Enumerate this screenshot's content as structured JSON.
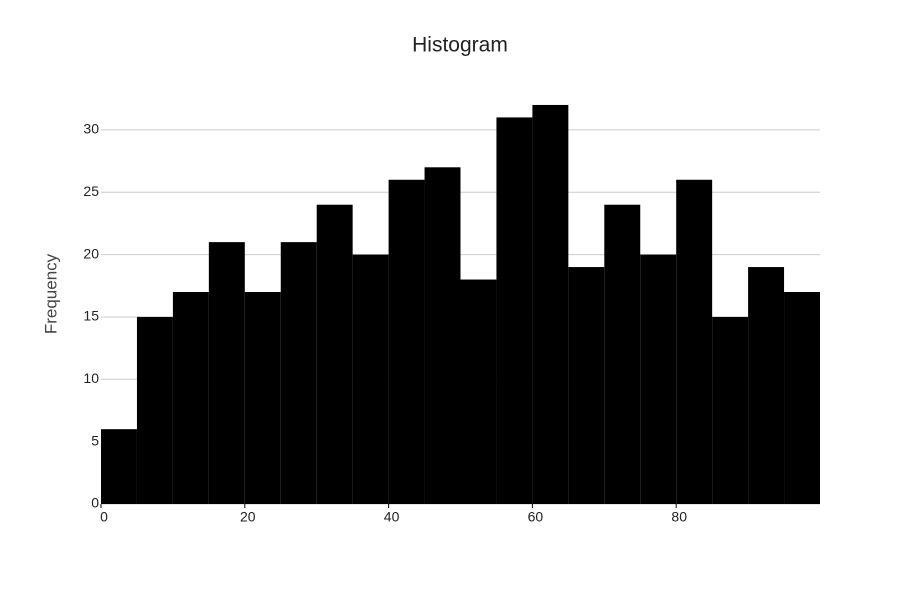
{
  "chart_data": {
    "type": "histogram",
    "title": "Histogram",
    "y_label": "Frequency",
    "bins": [
      0,
      5,
      10,
      15,
      20,
      25,
      30,
      35,
      40,
      45,
      50,
      55,
      60,
      65,
      70,
      75,
      80,
      85,
      90,
      95,
      100
    ],
    "values": [
      6,
      15,
      17,
      21,
      17,
      21,
      24,
      20,
      26,
      27,
      18,
      31,
      32,
      19,
      24,
      20,
      26,
      15,
      19,
      17
    ],
    "color": "#000000",
    "xlim": [
      0,
      100
    ],
    "xticks": [
      0,
      20,
      40,
      60,
      80
    ],
    "ylim": [
      0,
      33.6
    ],
    "yticks": [
      0,
      5,
      10,
      15,
      20,
      25,
      30
    ],
    "grid": true
  }
}
